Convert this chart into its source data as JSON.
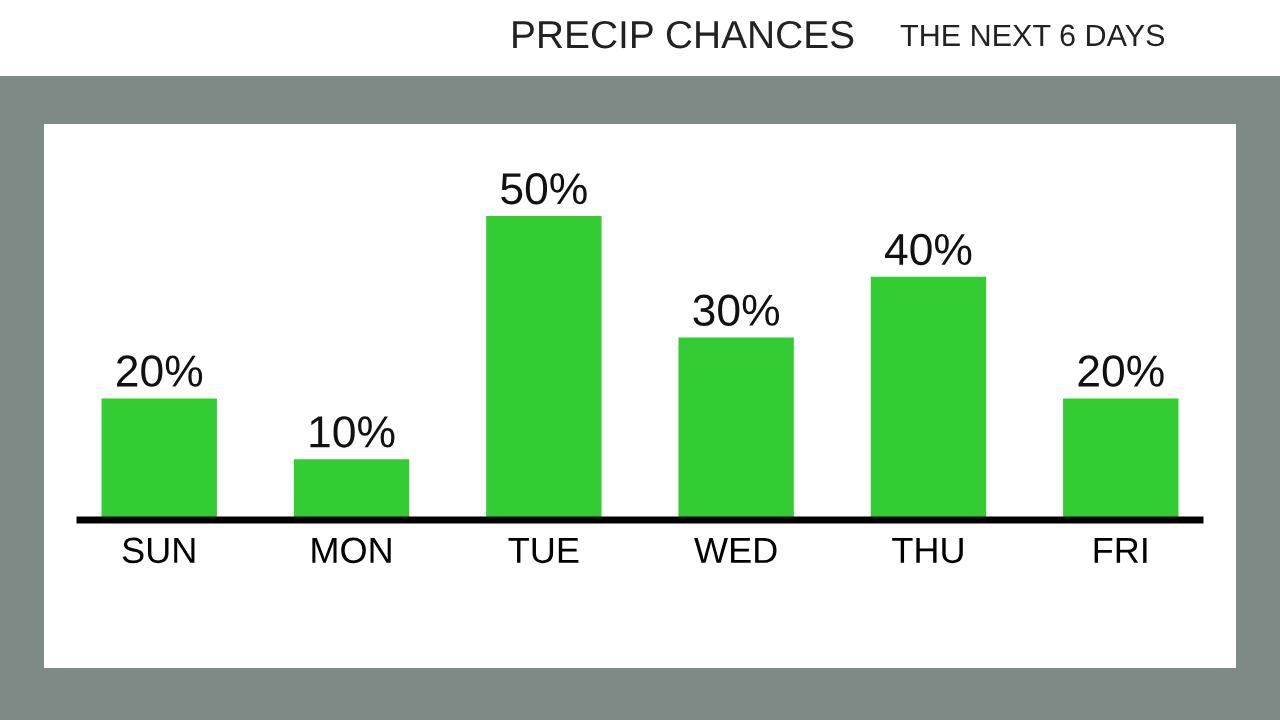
{
  "chart_data": {
    "type": "bar",
    "title": "PRECIP CHANCES",
    "subtitle": "THE NEXT 6 DAYS",
    "categories": [
      "SUN",
      "MON",
      "TUE",
      "WED",
      "THU",
      "FRI"
    ],
    "values": [
      20,
      10,
      50,
      30,
      40,
      20
    ],
    "value_labels": [
      "20%",
      "10%",
      "50%",
      "30%",
      "40%",
      "20%"
    ],
    "color": "#33cc33",
    "grid": false,
    "legend": false
  }
}
